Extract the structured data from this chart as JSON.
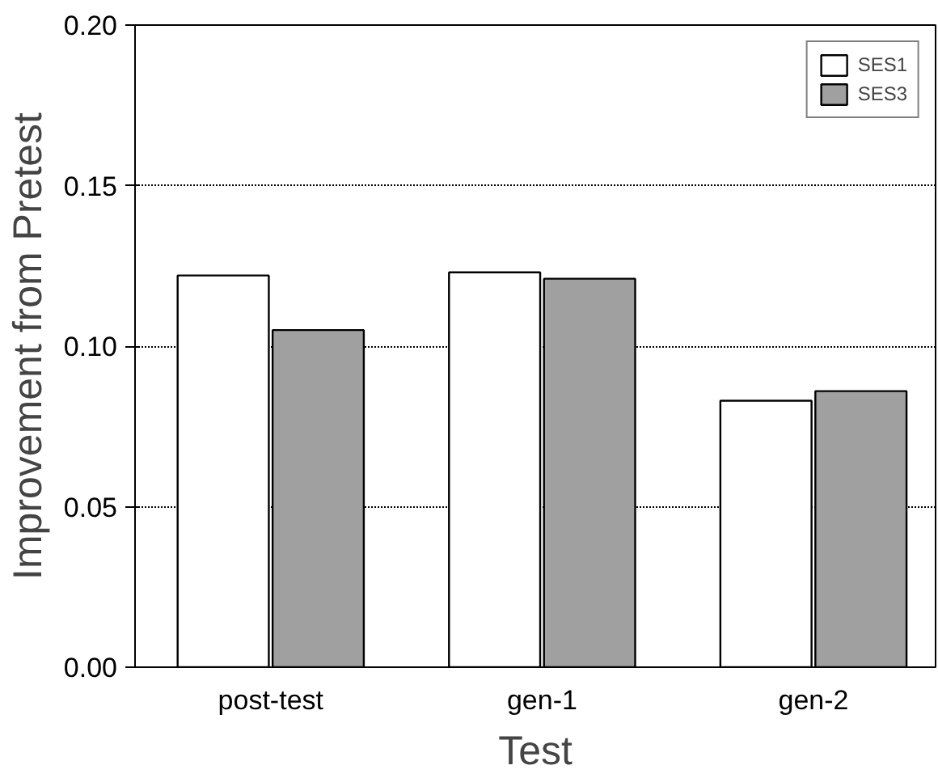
{
  "chart_data": {
    "type": "bar",
    "xlabel": "Test",
    "ylabel": "Improvement from Pretest",
    "categories": [
      "post-test",
      "gen-1",
      "gen-2"
    ],
    "series": [
      {
        "name": "SES1",
        "color": "#ffffff",
        "values": [
          0.122,
          0.123,
          0.083
        ]
      },
      {
        "name": "SES3",
        "color": "#a0a0a0",
        "values": [
          0.105,
          0.121,
          0.086
        ]
      }
    ],
    "ylim": [
      0,
      0.2
    ],
    "yticks": [
      {
        "value": 0,
        "label": "0.00"
      },
      {
        "value": 0.05,
        "label": "0.05"
      },
      {
        "value": 0.1,
        "label": "0.10"
      },
      {
        "value": 0.15,
        "label": "0.15"
      },
      {
        "value": 0.2,
        "label": "0.20"
      }
    ],
    "grid": "y",
    "legend": "top right"
  }
}
